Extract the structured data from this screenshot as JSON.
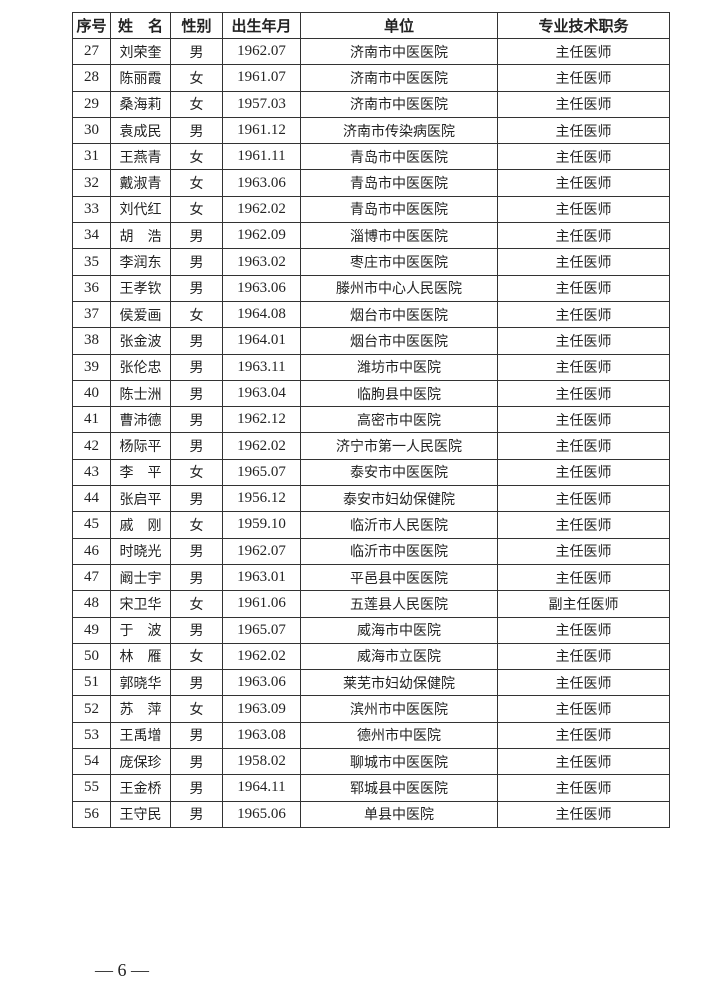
{
  "table": {
    "headers": [
      "序号",
      "姓　名",
      "性别",
      "出生年月",
      "单位",
      "专业技术职务"
    ],
    "rows": [
      [
        "27",
        "刘荣奎",
        "男",
        "1962.07",
        "济南市中医医院",
        "主任医师"
      ],
      [
        "28",
        "陈丽霞",
        "女",
        "1961.07",
        "济南市中医医院",
        "主任医师"
      ],
      [
        "29",
        "桑海莉",
        "女",
        "1957.03",
        "济南市中医医院",
        "主任医师"
      ],
      [
        "30",
        "袁成民",
        "男",
        "1961.12",
        "济南市传染病医院",
        "主任医师"
      ],
      [
        "31",
        "王燕青",
        "女",
        "1961.11",
        "青岛市中医医院",
        "主任医师"
      ],
      [
        "32",
        "戴淑青",
        "女",
        "1963.06",
        "青岛市中医医院",
        "主任医师"
      ],
      [
        "33",
        "刘代红",
        "女",
        "1962.02",
        "青岛市中医医院",
        "主任医师"
      ],
      [
        "34",
        "胡　浩",
        "男",
        "1962.09",
        "淄博市中医医院",
        "主任医师"
      ],
      [
        "35",
        "李润东",
        "男",
        "1963.02",
        "枣庄市中医医院",
        "主任医师"
      ],
      [
        "36",
        "王孝钦",
        "男",
        "1963.06",
        "滕州市中心人民医院",
        "主任医师"
      ],
      [
        "37",
        "侯爱画",
        "女",
        "1964.08",
        "烟台市中医医院",
        "主任医师"
      ],
      [
        "38",
        "张金波",
        "男",
        "1964.01",
        "烟台市中医医院",
        "主任医师"
      ],
      [
        "39",
        "张伦忠",
        "男",
        "1963.11",
        "潍坊市中医院",
        "主任医师"
      ],
      [
        "40",
        "陈士洲",
        "男",
        "1963.04",
        "临朐县中医院",
        "主任医师"
      ],
      [
        "41",
        "曹沛德",
        "男",
        "1962.12",
        "高密市中医院",
        "主任医师"
      ],
      [
        "42",
        "杨际平",
        "男",
        "1962.02",
        "济宁市第一人民医院",
        "主任医师"
      ],
      [
        "43",
        "李　平",
        "女",
        "1965.07",
        "泰安市中医医院",
        "主任医师"
      ],
      [
        "44",
        "张启平",
        "男",
        "1956.12",
        "泰安市妇幼保健院",
        "主任医师"
      ],
      [
        "45",
        "戚　刚",
        "女",
        "1959.10",
        "临沂市人民医院",
        "主任医师"
      ],
      [
        "46",
        "时晓光",
        "男",
        "1962.07",
        "临沂市中医医院",
        "主任医师"
      ],
      [
        "47",
        "阚士宇",
        "男",
        "1963.01",
        "平邑县中医医院",
        "主任医师"
      ],
      [
        "48",
        "宋卫华",
        "女",
        "1961.06",
        "五莲县人民医院",
        "副主任医师"
      ],
      [
        "49",
        "于　波",
        "男",
        "1965.07",
        "威海市中医院",
        "主任医师"
      ],
      [
        "50",
        "林　雁",
        "女",
        "1962.02",
        "威海市立医院",
        "主任医师"
      ],
      [
        "51",
        "郭晓华",
        "男",
        "1963.06",
        "莱芜市妇幼保健院",
        "主任医师"
      ],
      [
        "52",
        "苏　萍",
        "女",
        "1963.09",
        "滨州市中医医院",
        "主任医师"
      ],
      [
        "53",
        "王禹增",
        "男",
        "1963.08",
        "德州市中医院",
        "主任医师"
      ],
      [
        "54",
        "庞保珍",
        "男",
        "1958.02",
        "聊城市中医医院",
        "主任医师"
      ],
      [
        "55",
        "王金桥",
        "男",
        "1964.11",
        "郓城县中医医院",
        "主任医师"
      ],
      [
        "56",
        "王守民",
        "男",
        "1965.06",
        "单县中医院",
        "主任医师"
      ]
    ]
  },
  "footer": {
    "page_number": "— 6 —"
  }
}
